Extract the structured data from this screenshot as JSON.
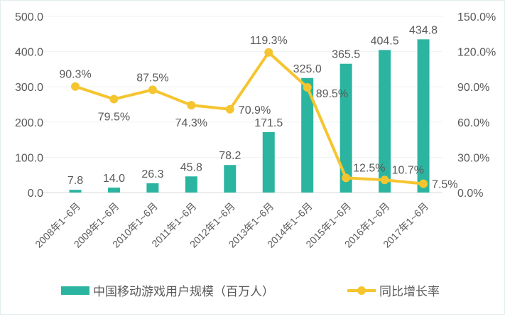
{
  "chart_data": {
    "type": "bar+line",
    "categories": [
      "2008年1~6月",
      "2009年1~6月",
      "2010年1~6月",
      "2011年1~6月",
      "2012年1~6月",
      "2013年1~6月",
      "2014年1~6月",
      "2015年1~6月",
      "2016年1~6月",
      "2017年1~6月"
    ],
    "series": [
      {
        "name": "中国移动游戏用户规模（百万人）",
        "type": "bar",
        "axis": "left",
        "color": "#2bb5a0",
        "values": [
          7.8,
          14.0,
          26.3,
          45.8,
          78.2,
          171.5,
          325.0,
          365.5,
          404.5,
          434.8
        ],
        "labels": [
          "7.8",
          "14.0",
          "26.3",
          "45.8",
          "78.2",
          "171.5",
          "325.0",
          "365.5",
          "404.5",
          "434.8"
        ]
      },
      {
        "name": "同比增长率",
        "type": "line",
        "axis": "right",
        "color": "#f5c530",
        "values": [
          90.3,
          79.5,
          87.5,
          74.3,
          70.9,
          119.3,
          89.5,
          12.5,
          10.7,
          7.5
        ],
        "labels": [
          "90.3%",
          "79.5%",
          "87.5%",
          "74.3%",
          "70.9%",
          "119.3%",
          "89.5%",
          "12.5%",
          "10.7%",
          "7.5%"
        ]
      }
    ],
    "y_left": {
      "range": [
        0,
        500
      ],
      "ticks": [
        "0.0",
        "100.0",
        "200.0",
        "300.0",
        "400.0",
        "500.0"
      ]
    },
    "y_right": {
      "range": [
        0,
        150
      ],
      "ticks": [
        "0.0%",
        "30.0%",
        "60.0%",
        "90.0%",
        "120.0%",
        "150.0%"
      ]
    },
    "grid": true,
    "legend": "bottom"
  }
}
